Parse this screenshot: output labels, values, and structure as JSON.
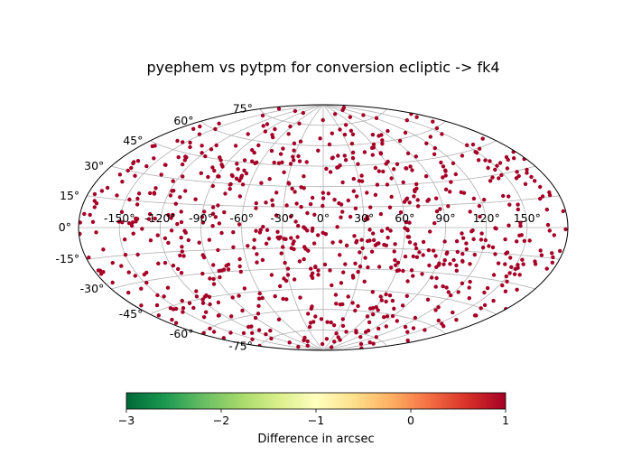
{
  "chart_data": {
    "type": "scatter",
    "projection": "aitoff",
    "title": "pyephem vs pytpm for conversion ecliptic -> fk4",
    "xlabel": "",
    "ylabel": "",
    "grid": true,
    "longitude_tick_labels": [
      "-150°",
      "-120°",
      "-90°",
      "-60°",
      "-30°",
      "0°",
      "30°",
      "60°",
      "90°",
      "120°",
      "150°"
    ],
    "latitude_tick_labels": [
      "-75°",
      "-60°",
      "-45°",
      "-30°",
      "-15°",
      "0°",
      "15°",
      "30°",
      "45°",
      "60°",
      "75°"
    ],
    "point_color": "#a50026",
    "point_count": 800,
    "point_value_approx": 0.95,
    "colorbar": {
      "label": "Difference in arcsec",
      "range": [
        -3,
        1
      ],
      "ticks": [
        "−3",
        "−2",
        "−1",
        "0",
        "1"
      ],
      "colormap": "RdYlGn_r",
      "colors": [
        "#006837",
        "#1a9850",
        "#66bd63",
        "#a6d96a",
        "#d9ef8b",
        "#ffffbf",
        "#fee08b",
        "#fdae61",
        "#f46d43",
        "#d73027",
        "#a50026"
      ]
    }
  }
}
